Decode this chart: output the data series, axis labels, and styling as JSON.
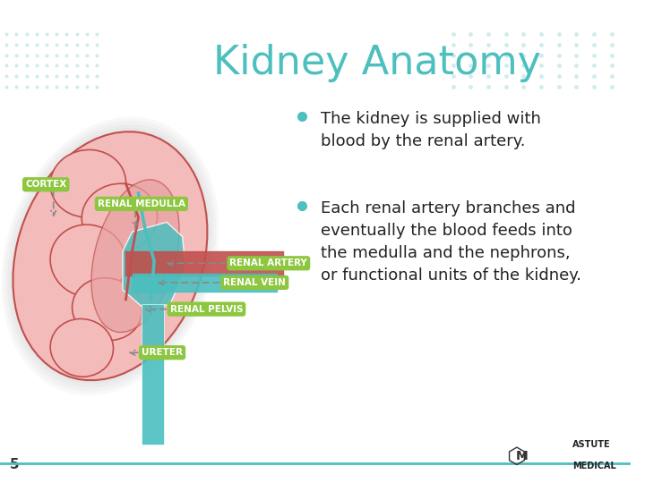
{
  "title": "Kidney Anatomy",
  "title_color": "#4DBFBF",
  "title_fontsize": 32,
  "bg_color": "#FFFFFF",
  "bullet1": "The kidney is supplied with\nblood by the renal artery.",
  "bullet2": "Each renal artery branches and\neventually the blood feeds into\nthe medulla and the nephrons,\nor functional units of the kidney.",
  "bullet_color": "#222222",
  "bullet_dot_color": "#4DBFBF",
  "bullet_fontsize": 13,
  "label_bg": "#8DC63F",
  "label_fg": "#FFFFFF",
  "label_fontsize": 7.5,
  "page_number": "5",
  "dot_pattern_color": "#C5E8E8",
  "kidney_pink": "#F4BBBB",
  "kidney_red": "#C0504D",
  "kidney_teal": "#4BBFBF",
  "bottom_line_color": "#4DBFBF"
}
